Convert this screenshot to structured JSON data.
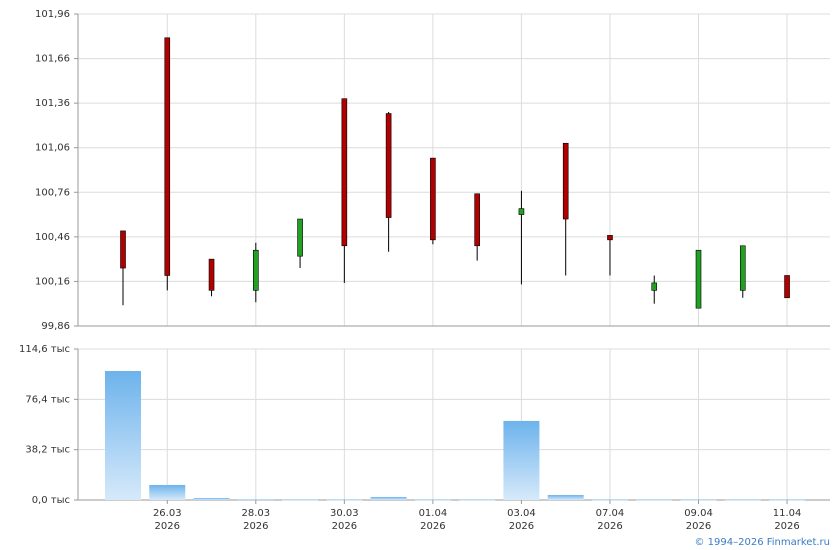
{
  "chart_data": [
    {
      "type": "candlestick",
      "up_color": "#22a022",
      "down_color": "#b00000",
      "open": [
        100.5,
        101.8,
        100.31,
        100.1,
        100.33,
        101.39,
        101.29,
        100.99,
        100.75,
        100.61,
        101.09,
        100.47,
        100.1,
        99.98,
        100.1,
        100.2
      ],
      "high": [
        100.5,
        101.8,
        100.31,
        100.42,
        100.58,
        101.39,
        101.3,
        100.99,
        100.75,
        100.77,
        101.09,
        100.47,
        100.2,
        100.37,
        100.4,
        100.2
      ],
      "low": [
        100.0,
        100.1,
        100.06,
        100.02,
        100.25,
        100.15,
        100.36,
        100.41,
        100.3,
        100.14,
        100.2,
        100.2,
        100.01,
        99.98,
        100.05,
        100.05
      ],
      "close": [
        100.25,
        100.2,
        100.1,
        100.37,
        100.58,
        100.4,
        100.59,
        100.44,
        100.4,
        100.65,
        100.58,
        100.44,
        100.15,
        100.37,
        100.4,
        100.05
      ],
      "ylim": [
        99.86,
        101.96
      ],
      "yticks": [
        {
          "value": 99.86,
          "label": "99,86"
        },
        {
          "value": 100.16,
          "label": "100,16"
        },
        {
          "value": 100.46,
          "label": "100,46"
        },
        {
          "value": 100.76,
          "label": "100,76"
        },
        {
          "value": 101.06,
          "label": "101,06"
        },
        {
          "value": 101.36,
          "label": "101,36"
        },
        {
          "value": 101.66,
          "label": "101,66"
        },
        {
          "value": 101.96,
          "label": "101,96"
        }
      ],
      "grid": true
    },
    {
      "type": "bar",
      "categories": [
        null,
        "26.03",
        null,
        "28.03",
        null,
        "30.03",
        null,
        "01.04",
        null,
        "03.04",
        null,
        "07.04",
        null,
        "09.04",
        null,
        "11.04"
      ],
      "category_years": [
        null,
        "2026",
        null,
        "2026",
        null,
        "2026",
        null,
        "2026",
        null,
        "2026",
        null,
        "2026",
        null,
        "2026",
        null,
        "2026"
      ],
      "values": [
        97.9,
        11.4,
        1.5,
        0.5,
        0.3,
        0.3,
        2.3,
        0.3,
        0.3,
        60.0,
        3.8,
        0.3,
        0.3,
        0.3,
        0.3,
        0.3
      ],
      "color": "#7ab8ee",
      "ylim": [
        0,
        114.6
      ],
      "yticks": [
        {
          "value": 0,
          "label": "0,0 тыс"
        },
        {
          "value": 38.2,
          "label": "38,2 тыс"
        },
        {
          "value": 76.4,
          "label": "76,4 тыс"
        },
        {
          "value": 114.6,
          "label": "114,6 тыс"
        }
      ],
      "grid": true
    }
  ],
  "footer": "© 1994–2026 Finmarket.ru"
}
